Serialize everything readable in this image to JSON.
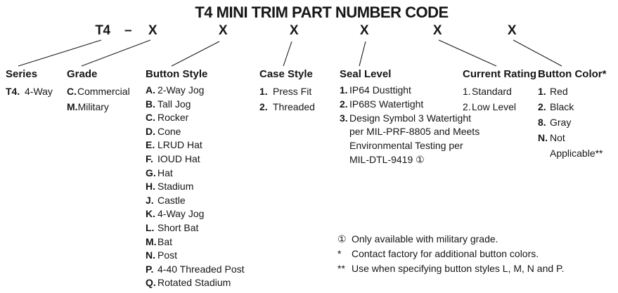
{
  "colors": {
    "text": "#161616",
    "background": "#ffffff"
  },
  "title": "T4 MINI TRIM PART NUMBER CODE",
  "code_row": {
    "prefix": "T4",
    "dash": "–",
    "placeholders": [
      "X",
      "X",
      "X",
      "X",
      "X",
      "X"
    ]
  },
  "columns": [
    {
      "heading": "Series",
      "items": [
        {
          "code": "T4.",
          "label": "4-Way"
        }
      ]
    },
    {
      "heading": "Grade",
      "items": [
        {
          "code": "C.",
          "label": "Commercial"
        },
        {
          "code": "M.",
          "label": "Military"
        }
      ]
    },
    {
      "heading": "Button Style",
      "items": [
        {
          "code": "A.",
          "label": "2-Way Jog"
        },
        {
          "code": "B.",
          "label": "Tall Jog"
        },
        {
          "code": "C.",
          "label": "Rocker"
        },
        {
          "code": "D.",
          "label": "Cone"
        },
        {
          "code": "E.",
          "label": "LRUD Hat"
        },
        {
          "code": "F.",
          "label": "IOUD Hat"
        },
        {
          "code": "G.",
          "label": "Hat"
        },
        {
          "code": "H.",
          "label": "Stadium"
        },
        {
          "code": "J.",
          "label": "Castle"
        },
        {
          "code": "K.",
          "label": "4-Way Jog"
        },
        {
          "code": "L.",
          "label": "Short Bat"
        },
        {
          "code": "M.",
          "label": "Bat"
        },
        {
          "code": "N.",
          "label": "Post"
        },
        {
          "code": "P.",
          "label": "4-40 Threaded Post"
        },
        {
          "code": "Q.",
          "label": "Rotated Stadium"
        }
      ]
    },
    {
      "heading": "Case Style",
      "items": [
        {
          "code": "1.",
          "label": "Press Fit"
        },
        {
          "code": "2.",
          "label": "Threaded"
        }
      ]
    },
    {
      "heading": "Seal Level",
      "items": [
        {
          "code": "1.",
          "label": "IP64 Dusttight"
        },
        {
          "code": "2.",
          "label": "IP68S Watertight"
        },
        {
          "code": "3.",
          "label": "Design Symbol 3 Watertight\nper MIL-PRF-8805 and Meets\nEnvironmental Testing per\nMIL-DTL-9419 ①"
        }
      ]
    },
    {
      "heading": "Current Rating",
      "items": [
        {
          "code": "1.",
          "label": "Standard"
        },
        {
          "code": "2.",
          "label": "Low Level"
        }
      ]
    },
    {
      "heading": "Button Color*",
      "items": [
        {
          "code": "1.",
          "label": "Red"
        },
        {
          "code": "2.",
          "label": "Black"
        },
        {
          "code": "8.",
          "label": "Gray"
        },
        {
          "code": "N.",
          "label": "Not Applicable**"
        }
      ]
    }
  ],
  "footnotes": [
    {
      "marker": "①",
      "text": "Only available with military grade."
    },
    {
      "marker": "*",
      "text": "Contact factory for additional button colors."
    },
    {
      "marker": "**",
      "text": "Use when specifying button styles L, M, N and P."
    }
  ]
}
